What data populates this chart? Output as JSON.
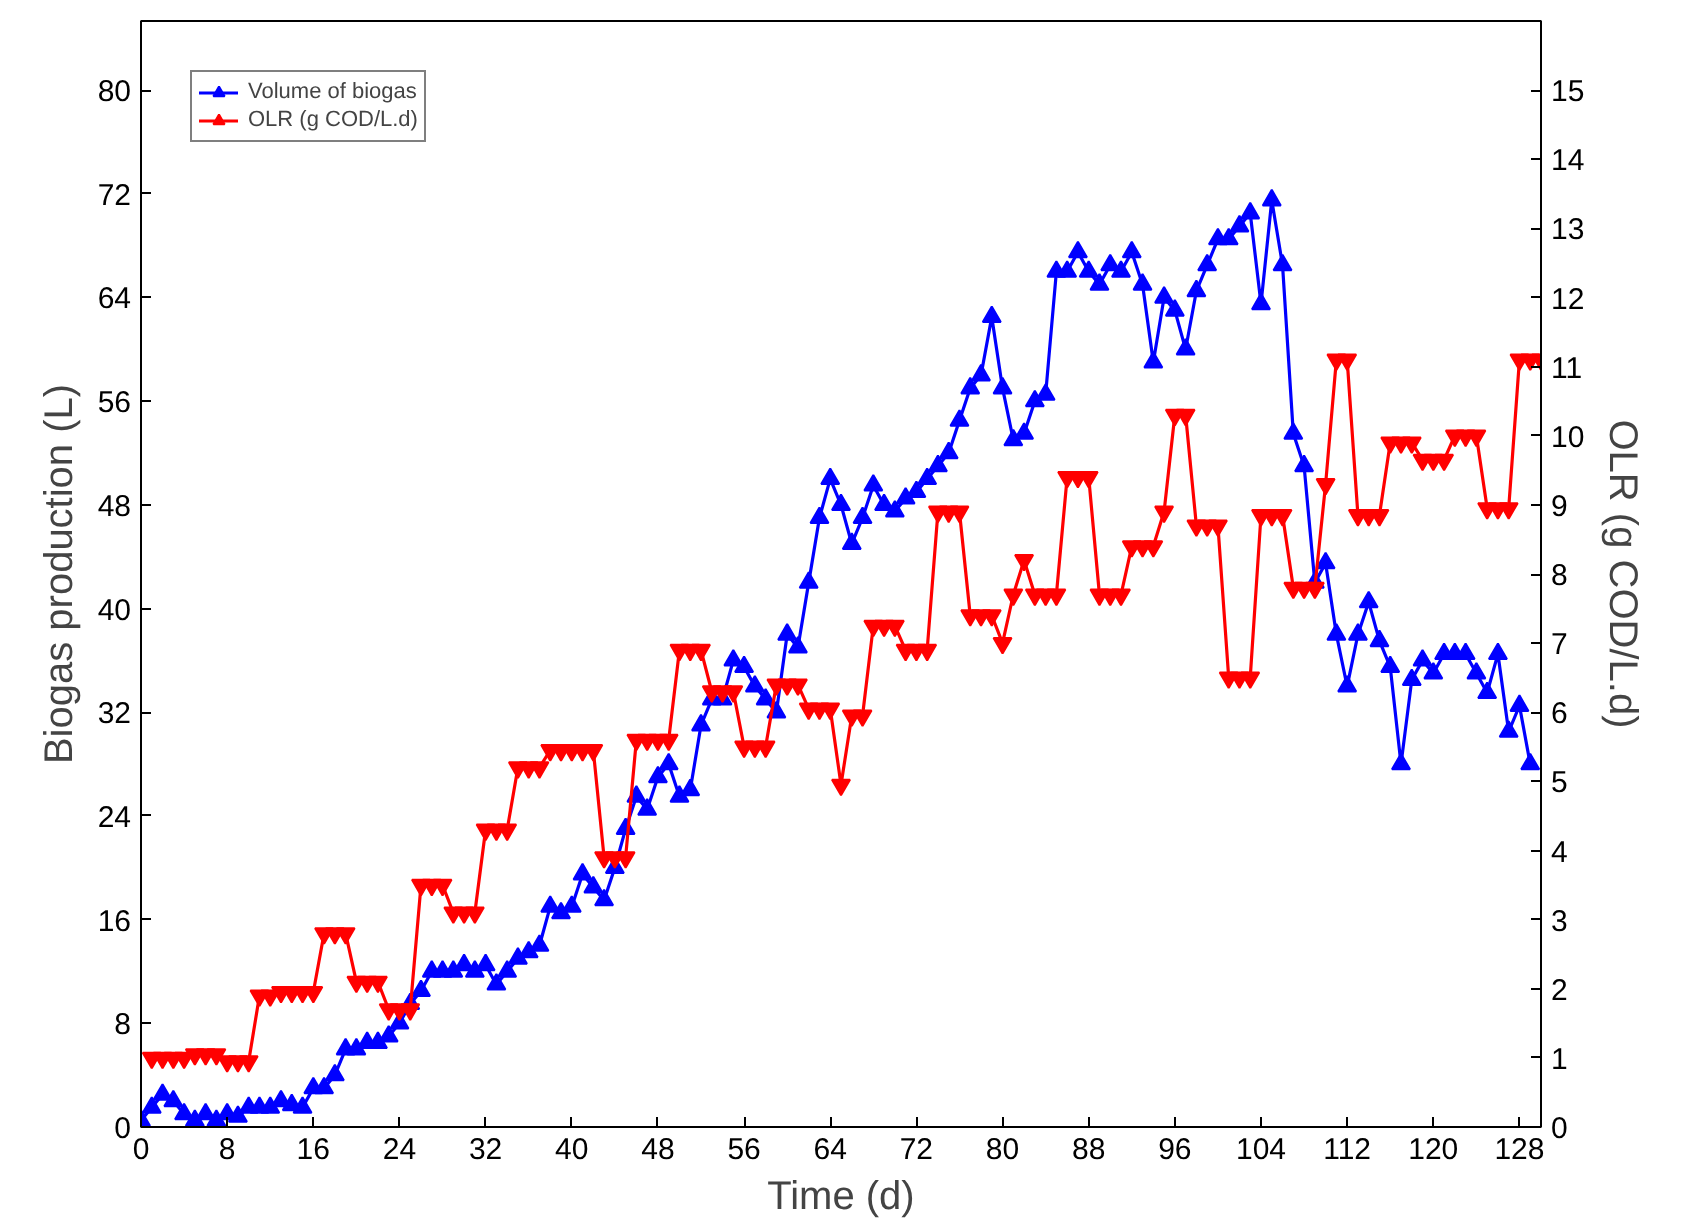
{
  "chart_data": {
    "type": "line",
    "xlabel": "Time (d)",
    "ylabel": "Biogas production (L)",
    "y2label": "OLR (g COD/L.d)",
    "xlim": [
      0,
      130
    ],
    "xticks": [
      0,
      8,
      16,
      24,
      32,
      40,
      48,
      56,
      64,
      72,
      80,
      88,
      96,
      104,
      112,
      120,
      128
    ],
    "ylim": [
      0,
      85.33
    ],
    "yticks": [
      0,
      8,
      16,
      24,
      32,
      40,
      48,
      56,
      64,
      72,
      80
    ],
    "y2lim": [
      0,
      16
    ],
    "y2ticks": [
      0,
      1,
      2,
      3,
      4,
      5,
      6,
      7,
      8,
      9,
      10,
      11,
      12,
      13,
      14,
      15
    ],
    "marker": "triangle",
    "line_style": "solid",
    "legend": "top left",
    "grid": false,
    "series": [
      {
        "name": "Volume of biogas",
        "color": "#0000ff",
        "x": [
          0,
          1,
          2,
          3,
          4,
          5,
          6,
          7,
          8,
          9,
          10,
          11,
          12,
          13,
          14,
          15,
          16,
          17,
          18,
          19,
          20,
          21,
          22,
          23,
          24,
          25,
          26,
          27,
          28,
          29,
          30,
          31,
          32,
          33,
          34,
          35,
          36,
          37,
          38,
          39,
          40,
          41,
          42,
          43,
          44,
          45,
          46,
          47,
          48,
          49,
          50,
          51,
          52,
          53,
          54,
          55,
          56,
          57,
          58,
          59,
          60,
          61,
          62,
          63,
          64,
          65,
          66,
          67,
          68,
          69,
          70,
          71,
          72,
          73,
          74,
          75,
          76,
          77,
          78,
          79,
          80,
          81,
          82,
          83,
          84,
          85,
          86,
          87,
          88,
          89,
          90,
          91,
          92,
          93,
          94,
          95,
          96,
          97,
          98,
          99,
          100,
          101,
          102,
          103,
          104,
          105,
          106,
          107,
          108,
          109,
          110,
          111,
          112,
          113,
          114,
          115,
          116,
          117,
          118,
          119,
          120,
          121,
          122,
          123,
          124,
          125,
          126,
          127,
          128,
          129
        ],
        "values": [
          0.5,
          1.5,
          2.5,
          2,
          1,
          0.5,
          1,
          0.5,
          1,
          0.8,
          1.5,
          1.5,
          1.5,
          2,
          1.7,
          1.5,
          3,
          3,
          4,
          6,
          6,
          6.5,
          6.5,
          7,
          8,
          9.5,
          10.5,
          12,
          12,
          12,
          12.5,
          12,
          12.5,
          11,
          12,
          13,
          13.5,
          14,
          17,
          16.5,
          17,
          19.5,
          18.5,
          17.5,
          20,
          23,
          25.5,
          24.5,
          27,
          28,
          25.5,
          26,
          31,
          33,
          33,
          36,
          35.5,
          34,
          33,
          32,
          38,
          37,
          42,
          47,
          50,
          48,
          45,
          47,
          49.5,
          48,
          47.5,
          48.5,
          49,
          50,
          51,
          52,
          54.5,
          57,
          58,
          62.5,
          57,
          53,
          53.5,
          56,
          56.5,
          66,
          66,
          67.5,
          66,
          65,
          66.5,
          66,
          67.5,
          65,
          59,
          64,
          63,
          60,
          64.5,
          66.5,
          68.5,
          68.5,
          69.5,
          70.5,
          63.5,
          71.5,
          66.5,
          53.5,
          51,
          42,
          43.5,
          38,
          34,
          38,
          40.5,
          37.5,
          35.5,
          28,
          34.5,
          36,
          35,
          36.5,
          36.5,
          36.5,
          35,
          33.5,
          36.5,
          30.5,
          32.5,
          28
        ]
      },
      {
        "name": "OLR (g COD/L.d)",
        "color": "#ff0000",
        "axis": "y2",
        "x": [
          1,
          2,
          3,
          4,
          5,
          6,
          7,
          8,
          9,
          10,
          11,
          12,
          13,
          14,
          15,
          16,
          17,
          18,
          19,
          20,
          21,
          22,
          23,
          24,
          25,
          26,
          27,
          28,
          29,
          30,
          31,
          32,
          33,
          34,
          35,
          36,
          37,
          38,
          39,
          40,
          41,
          42,
          43,
          44,
          45,
          46,
          47,
          48,
          49,
          50,
          51,
          52,
          53,
          54,
          55,
          56,
          57,
          58,
          59,
          60,
          61,
          62,
          63,
          64,
          65,
          66,
          67,
          68,
          69,
          70,
          71,
          72,
          73,
          74,
          75,
          76,
          77,
          78,
          79,
          80,
          81,
          82,
          83,
          84,
          85,
          86,
          87,
          88,
          89,
          90,
          91,
          92,
          93,
          94,
          95,
          96,
          97,
          98,
          99,
          100,
          101,
          102,
          103,
          104,
          105,
          106,
          107,
          108,
          109,
          110,
          111,
          112,
          113,
          114,
          115,
          116,
          117,
          118,
          119,
          120,
          121,
          122,
          123,
          124,
          125,
          126,
          127,
          128,
          129,
          130
        ],
        "values": [
          1.0,
          1.0,
          1.0,
          1.0,
          1.05,
          1.05,
          1.05,
          0.95,
          0.95,
          0.95,
          1.9,
          1.9,
          1.95,
          1.95,
          1.95,
          1.95,
          2.8,
          2.8,
          2.8,
          2.1,
          2.1,
          2.1,
          1.7,
          1.7,
          1.7,
          3.5,
          3.5,
          3.5,
          3.1,
          3.1,
          3.1,
          4.3,
          4.3,
          4.3,
          5.2,
          5.2,
          5.2,
          5.45,
          5.45,
          5.45,
          5.45,
          5.45,
          3.9,
          3.9,
          3.9,
          5.6,
          5.6,
          5.6,
          5.6,
          6.9,
          6.9,
          6.9,
          6.3,
          6.3,
          6.3,
          5.5,
          5.5,
          5.5,
          6.4,
          6.4,
          6.4,
          6.05,
          6.05,
          6.05,
          4.95,
          5.95,
          5.95,
          7.25,
          7.25,
          7.25,
          6.9,
          6.9,
          6.9,
          8.9,
          8.9,
          8.9,
          7.4,
          7.4,
          7.4,
          7.0,
          7.7,
          8.2,
          7.7,
          7.7,
          7.7,
          9.4,
          9.4,
          9.4,
          7.7,
          7.7,
          7.7,
          8.4,
          8.4,
          8.4,
          8.9,
          10.3,
          10.3,
          8.7,
          8.7,
          8.7,
          6.5,
          6.5,
          6.5,
          8.85,
          8.85,
          8.85,
          7.8,
          7.8,
          7.8,
          9.3,
          11.1,
          11.1,
          8.85,
          8.85,
          8.85,
          9.9,
          9.9,
          9.9,
          9.65,
          9.65,
          9.65,
          10.0,
          10.0,
          10.0,
          8.95,
          8.95,
          8.95,
          11.1,
          11.1,
          11.1
        ]
      }
    ]
  }
}
